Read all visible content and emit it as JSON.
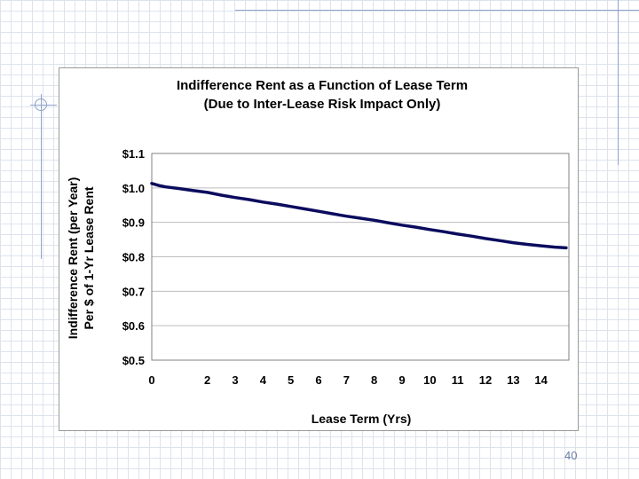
{
  "slide": {
    "number": "40"
  },
  "chart_data": {
    "type": "line",
    "title": "Indifference Rent as a Function of Lease Term",
    "subtitle": "(Due to Inter-Lease Risk Impact Only)",
    "xlabel": "Lease Term (Yrs)",
    "ylabel_line1": "Indifference Rent (per Year)",
    "ylabel_line2": "Per $ of 1-Yr Lease Rent",
    "xlim": [
      0,
      15
    ],
    "ylim": [
      0.5,
      1.1
    ],
    "x_ticks": [
      {
        "value": 0,
        "label": "0"
      },
      {
        "value": 2,
        "label": "2"
      },
      {
        "value": 3,
        "label": "3"
      },
      {
        "value": 4,
        "label": "4"
      },
      {
        "value": 5,
        "label": "5"
      },
      {
        "value": 6,
        "label": "6"
      },
      {
        "value": 7,
        "label": "7"
      },
      {
        "value": 8,
        "label": "8"
      },
      {
        "value": 9,
        "label": "9"
      },
      {
        "value": 10,
        "label": "10"
      },
      {
        "value": 11,
        "label": "11"
      },
      {
        "value": 12,
        "label": "12"
      },
      {
        "value": 13,
        "label": "13"
      },
      {
        "value": 14,
        "label": "14"
      }
    ],
    "y_ticks": [
      {
        "value": 1.1,
        "label": "$1.1"
      },
      {
        "value": 1.0,
        "label": "$1.0"
      },
      {
        "value": 0.9,
        "label": "$0.9"
      },
      {
        "value": 0.8,
        "label": "$0.8"
      },
      {
        "value": 0.7,
        "label": "$0.7"
      },
      {
        "value": 0.6,
        "label": "$0.6"
      },
      {
        "value": 0.5,
        "label": "$0.5"
      }
    ],
    "grid": true,
    "line_color": "#0b0b5e",
    "series": [
      {
        "x": [
          0,
          0.25,
          0.5,
          1,
          1.5,
          2,
          2.5,
          3,
          3.5,
          4,
          4.5,
          5,
          5.5,
          6,
          6.5,
          7,
          7.5,
          8,
          8.5,
          9,
          9.5,
          10,
          10.5,
          11,
          11.5,
          12,
          12.5,
          13,
          13.5,
          14,
          14.5,
          14.9
        ],
        "y": [
          1.013,
          1.007,
          1.003,
          0.998,
          0.992,
          0.987,
          0.979,
          0.972,
          0.966,
          0.959,
          0.953,
          0.946,
          0.939,
          0.932,
          0.925,
          0.918,
          0.912,
          0.906,
          0.899,
          0.892,
          0.886,
          0.879,
          0.873,
          0.866,
          0.86,
          0.853,
          0.847,
          0.841,
          0.836,
          0.832,
          0.828,
          0.826
        ]
      }
    ]
  }
}
